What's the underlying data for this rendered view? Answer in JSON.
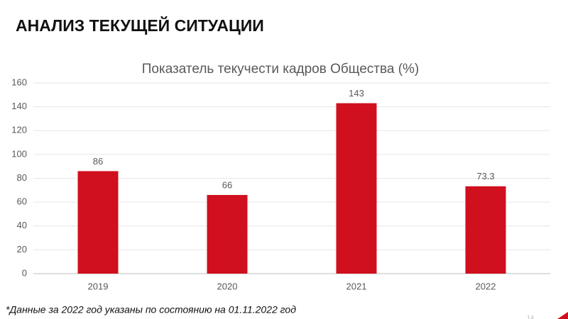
{
  "heading": "АНАЛИЗ ТЕКУЩЕЙ СИТУАЦИИ",
  "chart_data": {
    "type": "bar",
    "title": "Показатель текучести кадров Общества (%)",
    "categories": [
      "2019",
      "2020",
      "2021",
      "2022"
    ],
    "values": [
      86,
      66,
      143,
      73.3
    ],
    "color": "#d0101e",
    "ylim": [
      0,
      160
    ],
    "yticks": [
      0,
      20,
      40,
      60,
      80,
      100,
      120,
      140,
      160
    ],
    "grid": true
  },
  "footnote": "*Данные за 2022 год указаны по состоянию на 01.11.2022 год",
  "page_number": "14"
}
